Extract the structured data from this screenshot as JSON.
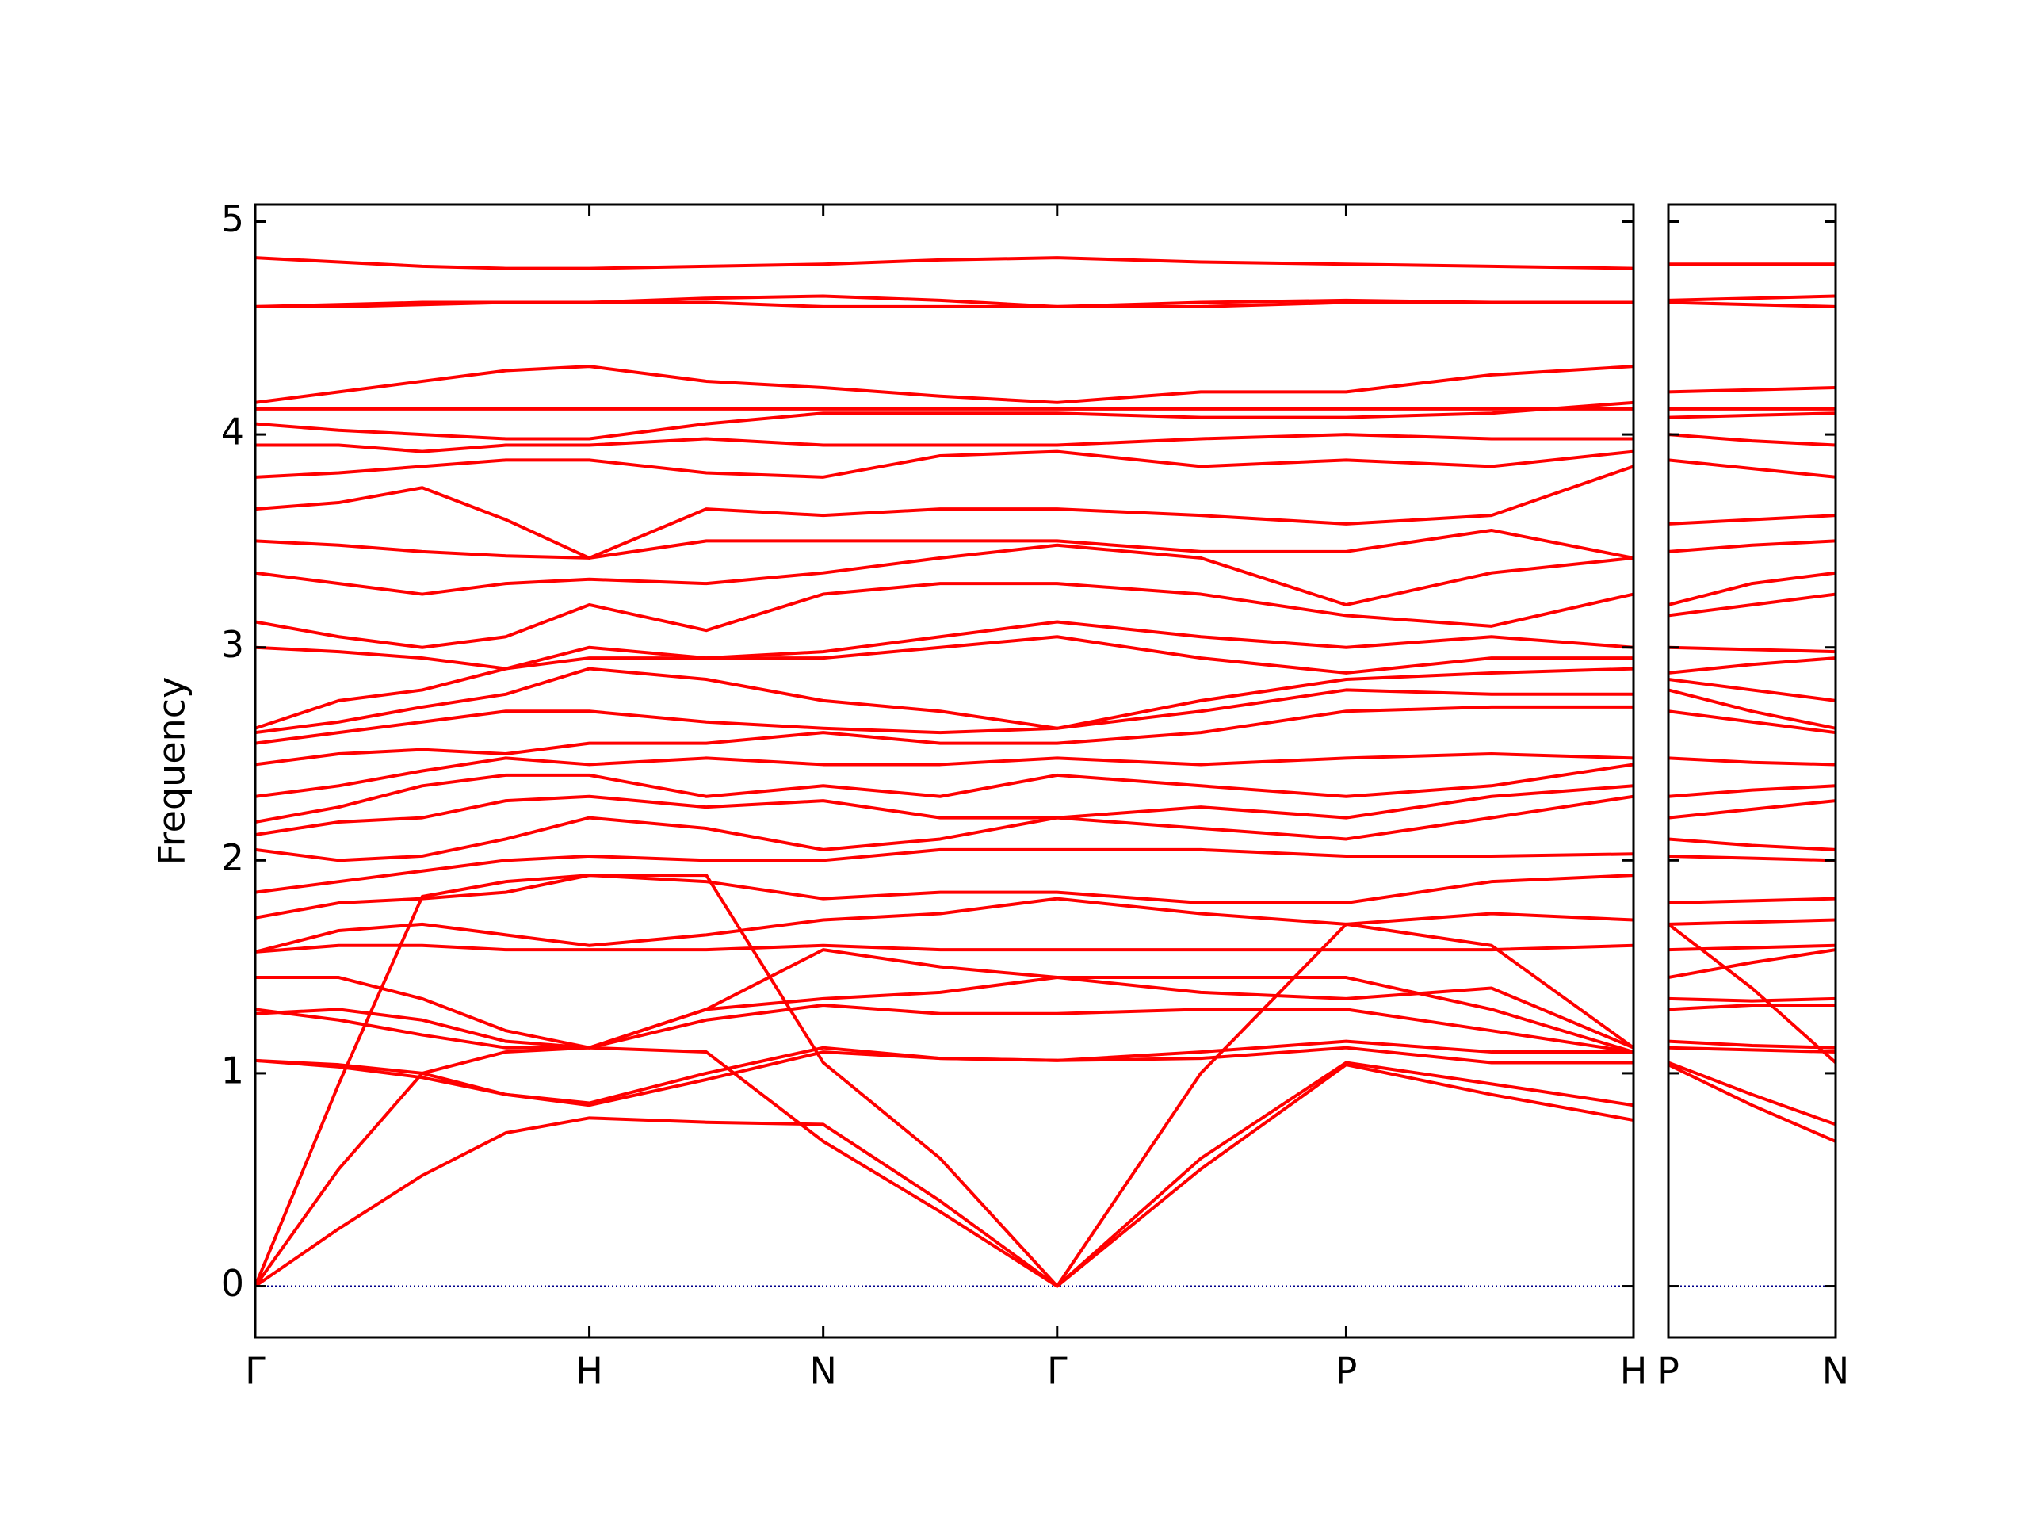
{
  "chart_data": [
    {
      "type": "line",
      "ylabel": "Frequency",
      "color": "#ff0000",
      "zero_line": {
        "value": 0,
        "color": "#00008b"
      },
      "xlim": [
        0,
        4.125
      ],
      "ylim": [
        -0.24,
        5.08
      ],
      "xticks": [
        {
          "value": 0,
          "label": "Γ"
        },
        {
          "value": 1.0,
          "label": "H"
        },
        {
          "value": 1.7,
          "label": "N"
        },
        {
          "value": 2.4,
          "label": "Γ"
        },
        {
          "value": 3.265,
          "label": "P"
        },
        {
          "value": 4.125,
          "label": "H"
        }
      ],
      "yticks": [
        0,
        1,
        2,
        3,
        4,
        5
      ],
      "x": [
        0,
        0.25,
        0.5,
        0.75,
        1.0,
        1.35,
        1.7,
        2.05,
        2.4,
        2.83,
        3.265,
        3.7,
        4.125
      ],
      "series": [
        {
          "values": [
            0,
            0.27,
            0.52,
            0.72,
            0.79,
            0.77,
            0.76,
            0.4,
            0,
            0.55,
            1.04,
            0.9,
            0.78
          ]
        },
        {
          "values": [
            0,
            0.55,
            1.0,
            1.1,
            1.12,
            1.1,
            0.68,
            0.35,
            0,
            0.6,
            1.05,
            0.95,
            0.85
          ]
        },
        {
          "values": [
            0,
            0.95,
            1.83,
            1.9,
            1.93,
            1.93,
            1.05,
            0.6,
            0,
            1.0,
            1.7,
            1.6,
            1.12
          ]
        },
        {
          "values": [
            1.06,
            1.04,
            1.0,
            0.9,
            0.85,
            0.97,
            1.1,
            1.07,
            1.06,
            1.07,
            1.12,
            1.05,
            1.05
          ]
        },
        {
          "values": [
            1.06,
            1.03,
            0.98,
            0.9,
            0.86,
            1.0,
            1.12,
            1.07,
            1.06,
            1.1,
            1.15,
            1.1,
            1.1
          ]
        },
        {
          "values": [
            1.28,
            1.3,
            1.25,
            1.15,
            1.12,
            1.25,
            1.32,
            1.28,
            1.28,
            1.3,
            1.3,
            1.2,
            1.1
          ]
        },
        {
          "values": [
            1.3,
            1.25,
            1.18,
            1.12,
            1.12,
            1.3,
            1.35,
            1.38,
            1.45,
            1.38,
            1.35,
            1.4,
            1.12
          ]
        },
        {
          "values": [
            1.45,
            1.45,
            1.35,
            1.2,
            1.12,
            1.3,
            1.58,
            1.5,
            1.45,
            1.45,
            1.45,
            1.3,
            1.1
          ]
        },
        {
          "values": [
            1.57,
            1.6,
            1.6,
            1.58,
            1.58,
            1.58,
            1.6,
            1.58,
            1.58,
            1.58,
            1.58,
            1.58,
            1.6
          ]
        },
        {
          "values": [
            1.57,
            1.67,
            1.7,
            1.65,
            1.6,
            1.65,
            1.72,
            1.75,
            1.82,
            1.75,
            1.7,
            1.75,
            1.72
          ]
        },
        {
          "values": [
            1.73,
            1.8,
            1.82,
            1.85,
            1.93,
            1.9,
            1.82,
            1.85,
            1.85,
            1.8,
            1.8,
            1.9,
            1.93
          ]
        },
        {
          "values": [
            1.85,
            1.9,
            1.95,
            2.0,
            2.02,
            2.0,
            2.0,
            2.05,
            2.05,
            2.05,
            2.02,
            2.02,
            2.03
          ]
        },
        {
          "values": [
            2.05,
            2.0,
            2.02,
            2.1,
            2.2,
            2.15,
            2.05,
            2.1,
            2.2,
            2.15,
            2.1,
            2.2,
            2.3
          ]
        },
        {
          "values": [
            2.12,
            2.18,
            2.2,
            2.28,
            2.3,
            2.25,
            2.28,
            2.2,
            2.2,
            2.25,
            2.2,
            2.3,
            2.35
          ]
        },
        {
          "values": [
            2.18,
            2.25,
            2.35,
            2.4,
            2.4,
            2.3,
            2.35,
            2.3,
            2.4,
            2.35,
            2.3,
            2.35,
            2.45
          ]
        },
        {
          "values": [
            2.3,
            2.35,
            2.42,
            2.48,
            2.45,
            2.48,
            2.45,
            2.45,
            2.48,
            2.45,
            2.48,
            2.5,
            2.48
          ]
        },
        {
          "values": [
            2.45,
            2.5,
            2.52,
            2.5,
            2.55,
            2.55,
            2.6,
            2.55,
            2.55,
            2.6,
            2.7,
            2.72,
            2.72
          ]
        },
        {
          "values": [
            2.55,
            2.6,
            2.65,
            2.7,
            2.7,
            2.65,
            2.62,
            2.6,
            2.62,
            2.7,
            2.8,
            2.78,
            2.78
          ]
        },
        {
          "values": [
            2.6,
            2.65,
            2.72,
            2.78,
            2.9,
            2.85,
            2.75,
            2.7,
            2.62,
            2.75,
            2.85,
            2.88,
            2.9
          ]
        },
        {
          "values": [
            2.62,
            2.75,
            2.8,
            2.9,
            2.95,
            2.95,
            2.95,
            3.0,
            3.05,
            2.95,
            2.88,
            2.95,
            2.95
          ]
        },
        {
          "values": [
            3.0,
            2.98,
            2.95,
            2.9,
            3.0,
            2.95,
            2.98,
            3.05,
            3.12,
            3.05,
            3.0,
            3.05,
            3.0
          ]
        },
        {
          "values": [
            3.12,
            3.05,
            3.0,
            3.05,
            3.2,
            3.08,
            3.25,
            3.3,
            3.3,
            3.25,
            3.15,
            3.1,
            3.25
          ]
        },
        {
          "values": [
            3.35,
            3.3,
            3.25,
            3.3,
            3.32,
            3.3,
            3.35,
            3.42,
            3.48,
            3.42,
            3.2,
            3.35,
            3.42
          ]
        },
        {
          "values": [
            3.5,
            3.48,
            3.45,
            3.43,
            3.42,
            3.5,
            3.5,
            3.5,
            3.5,
            3.45,
            3.45,
            3.55,
            3.42
          ]
        },
        {
          "values": [
            3.65,
            3.68,
            3.75,
            3.6,
            3.42,
            3.65,
            3.62,
            3.65,
            3.65,
            3.62,
            3.58,
            3.62,
            3.85
          ]
        },
        {
          "values": [
            3.8,
            3.82,
            3.85,
            3.88,
            3.88,
            3.82,
            3.8,
            3.9,
            3.92,
            3.85,
            3.88,
            3.85,
            3.92
          ]
        },
        {
          "values": [
            3.95,
            3.95,
            3.92,
            3.95,
            3.95,
            3.98,
            3.95,
            3.95,
            3.95,
            3.98,
            4.0,
            3.98,
            3.98
          ]
        },
        {
          "values": [
            4.05,
            4.02,
            4.0,
            3.98,
            3.98,
            4.05,
            4.1,
            4.1,
            4.1,
            4.08,
            4.08,
            4.1,
            4.15
          ]
        },
        {
          "values": [
            4.12,
            4.12,
            4.12,
            4.12,
            4.12,
            4.12,
            4.12,
            4.12,
            4.12,
            4.12,
            4.12,
            4.12,
            4.12
          ]
        },
        {
          "values": [
            4.15,
            4.2,
            4.25,
            4.3,
            4.32,
            4.25,
            4.22,
            4.18,
            4.15,
            4.2,
            4.2,
            4.28,
            4.32
          ]
        },
        {
          "values": [
            4.6,
            4.6,
            4.61,
            4.62,
            4.62,
            4.62,
            4.6,
            4.6,
            4.6,
            4.6,
            4.62,
            4.62,
            4.62
          ]
        },
        {
          "values": [
            4.6,
            4.61,
            4.62,
            4.62,
            4.62,
            4.64,
            4.65,
            4.63,
            4.6,
            4.62,
            4.63,
            4.62,
            4.62
          ]
        },
        {
          "values": [
            4.83,
            4.81,
            4.79,
            4.78,
            4.78,
            4.79,
            4.8,
            4.82,
            4.83,
            4.81,
            4.8,
            4.79,
            4.78
          ]
        }
      ]
    },
    {
      "type": "line",
      "color": "#ff0000",
      "zero_line": {
        "value": 0,
        "color": "#00008b"
      },
      "xlim": [
        0,
        0.5
      ],
      "ylim": [
        -0.24,
        5.08
      ],
      "xticks": [
        {
          "value": 0,
          "label": "P"
        },
        {
          "value": 0.5,
          "label": "N"
        }
      ],
      "x": [
        0,
        0.25,
        0.5
      ],
      "series": [
        {
          "values": [
            1.04,
            0.85,
            0.68
          ]
        },
        {
          "values": [
            1.05,
            0.9,
            0.76
          ]
        },
        {
          "values": [
            1.7,
            1.4,
            1.05
          ]
        },
        {
          "values": [
            1.12,
            1.11,
            1.1
          ]
        },
        {
          "values": [
            1.15,
            1.13,
            1.12
          ]
        },
        {
          "values": [
            1.3,
            1.32,
            1.32
          ]
        },
        {
          "values": [
            1.35,
            1.34,
            1.35
          ]
        },
        {
          "values": [
            1.45,
            1.52,
            1.58
          ]
        },
        {
          "values": [
            1.58,
            1.59,
            1.6
          ]
        },
        {
          "values": [
            1.7,
            1.71,
            1.72
          ]
        },
        {
          "values": [
            1.8,
            1.81,
            1.82
          ]
        },
        {
          "values": [
            2.02,
            2.01,
            2.0
          ]
        },
        {
          "values": [
            2.1,
            2.07,
            2.05
          ]
        },
        {
          "values": [
            2.2,
            2.24,
            2.28
          ]
        },
        {
          "values": [
            2.3,
            2.33,
            2.35
          ]
        },
        {
          "values": [
            2.48,
            2.46,
            2.45
          ]
        },
        {
          "values": [
            2.7,
            2.65,
            2.6
          ]
        },
        {
          "values": [
            2.8,
            2.7,
            2.62
          ]
        },
        {
          "values": [
            2.85,
            2.8,
            2.75
          ]
        },
        {
          "values": [
            2.88,
            2.92,
            2.95
          ]
        },
        {
          "values": [
            3.0,
            2.99,
            2.98
          ]
        },
        {
          "values": [
            3.15,
            3.2,
            3.25
          ]
        },
        {
          "values": [
            3.2,
            3.3,
            3.35
          ]
        },
        {
          "values": [
            3.45,
            3.48,
            3.5
          ]
        },
        {
          "values": [
            3.58,
            3.6,
            3.62
          ]
        },
        {
          "values": [
            3.88,
            3.84,
            3.8
          ]
        },
        {
          "values": [
            4.0,
            3.97,
            3.95
          ]
        },
        {
          "values": [
            4.08,
            4.09,
            4.1
          ]
        },
        {
          "values": [
            4.12,
            4.12,
            4.12
          ]
        },
        {
          "values": [
            4.2,
            4.21,
            4.22
          ]
        },
        {
          "values": [
            4.62,
            4.61,
            4.6
          ]
        },
        {
          "values": [
            4.63,
            4.64,
            4.65
          ]
        },
        {
          "values": [
            4.8,
            4.8,
            4.8
          ]
        }
      ]
    }
  ]
}
